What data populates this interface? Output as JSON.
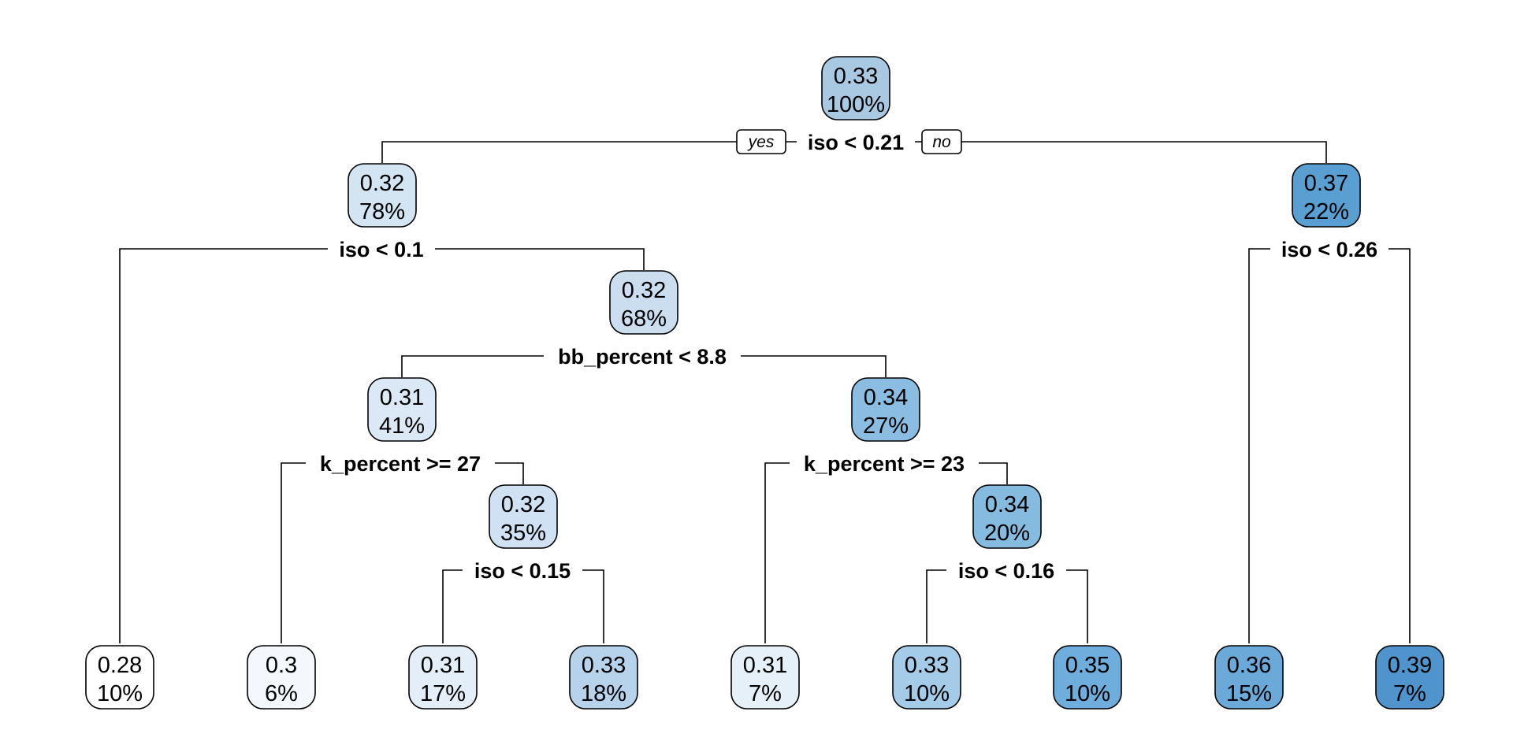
{
  "tree": {
    "nodes": [
      {
        "id": "n1",
        "value": "0.33",
        "percent": "100%",
        "fill": "#a9c9e2"
      },
      {
        "id": "n2",
        "value": "0.32",
        "percent": "78%",
        "fill": "#d3e4f3"
      },
      {
        "id": "n3",
        "value": "0.37",
        "percent": "22%",
        "fill": "#5a9fd2"
      },
      {
        "id": "n5",
        "value": "0.32",
        "percent": "68%",
        "fill": "#cadef0"
      },
      {
        "id": "n10",
        "value": "0.31",
        "percent": "41%",
        "fill": "#dbe9f6"
      },
      {
        "id": "n11",
        "value": "0.34",
        "percent": "27%",
        "fill": "#8abde1"
      },
      {
        "id": "n21",
        "value": "0.32",
        "percent": "35%",
        "fill": "#cfe1f2"
      },
      {
        "id": "n23",
        "value": "0.34",
        "percent": "20%",
        "fill": "#86bbe0"
      },
      {
        "id": "l1",
        "value": "0.28",
        "percent": "10%",
        "fill": "#ffffff"
      },
      {
        "id": "l2",
        "value": "0.3",
        "percent": "6%",
        "fill": "#f4f8fc"
      },
      {
        "id": "l3",
        "value": "0.31",
        "percent": "17%",
        "fill": "#e3eef8"
      },
      {
        "id": "l4",
        "value": "0.33",
        "percent": "18%",
        "fill": "#b7d3ec"
      },
      {
        "id": "l5",
        "value": "0.31",
        "percent": "7%",
        "fill": "#e6f0f9"
      },
      {
        "id": "l6",
        "value": "0.33",
        "percent": "10%",
        "fill": "#a4cbe8"
      },
      {
        "id": "l7",
        "value": "0.35",
        "percent": "10%",
        "fill": "#6eaddc"
      },
      {
        "id": "l8",
        "value": "0.36",
        "percent": "15%",
        "fill": "#6aa9d8"
      },
      {
        "id": "l9",
        "value": "0.39",
        "percent": "7%",
        "fill": "#4f94cc"
      }
    ],
    "splits": [
      {
        "id": "s1",
        "label": "iso < 0.21"
      },
      {
        "id": "s2",
        "label": "iso < 0.1"
      },
      {
        "id": "s3",
        "label": "iso < 0.26"
      },
      {
        "id": "s5",
        "label": "bb_percent < 8.8"
      },
      {
        "id": "s10",
        "label": "k_percent >= 27"
      },
      {
        "id": "s11",
        "label": "k_percent >= 23"
      },
      {
        "id": "s21",
        "label": "iso < 0.15"
      },
      {
        "id": "s23",
        "label": "iso < 0.16"
      }
    ],
    "branch_labels": {
      "yes": "yes",
      "no": "no"
    }
  }
}
